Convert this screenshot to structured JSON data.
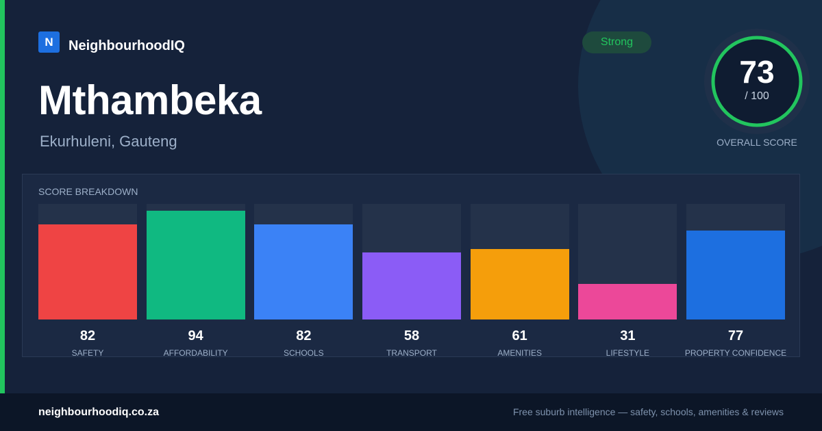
{
  "brand": {
    "logo_letter": "N",
    "name": "NeighbourhoodIQ"
  },
  "suburb": {
    "name": "Mthambeka",
    "location": "Ekurhuleni, Gauteng"
  },
  "badge": {
    "label": "Strong",
    "color": "#22c55e"
  },
  "overall": {
    "score": "73",
    "max_label": "/ 100",
    "caption": "OVERALL SCORE",
    "value": 73,
    "max": 100,
    "ring_color": "#22c55e"
  },
  "breakdown": {
    "title": "SCORE BREAKDOWN",
    "items": [
      {
        "label": "SAFETY",
        "value": "82",
        "score": 82,
        "color": "#ef4444"
      },
      {
        "label": "AFFORDABILITY",
        "value": "94",
        "score": 94,
        "color": "#10b981"
      },
      {
        "label": "SCHOOLS",
        "value": "82",
        "score": 82,
        "color": "#3b82f6"
      },
      {
        "label": "TRANSPORT",
        "value": "58",
        "score": 58,
        "color": "#8b5cf6"
      },
      {
        "label": "AMENITIES",
        "value": "61",
        "score": 61,
        "color": "#f59e0b"
      },
      {
        "label": "LIFESTYLE",
        "value": "31",
        "score": 31,
        "color": "#ec4899"
      },
      {
        "label": "PROPERTY CONFIDENCE",
        "value": "77",
        "score": 77,
        "color": "#1d6fe0"
      }
    ]
  },
  "footer": {
    "domain": "neighbourhoodiq.co.za",
    "tagline": "Free suburb intelligence — safety, schools, amenities & reviews"
  }
}
